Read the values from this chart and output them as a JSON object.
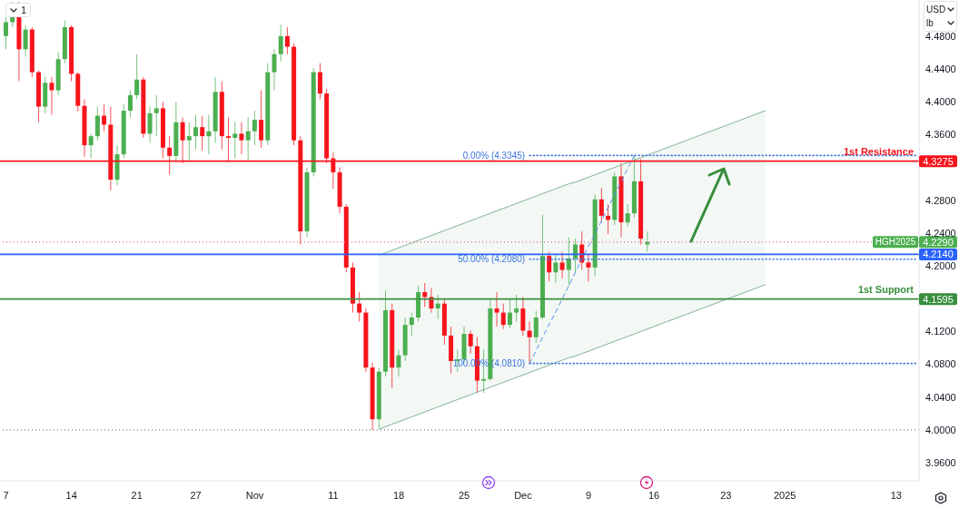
{
  "chart_data": {
    "type": "candlestick",
    "categories": [
      "7",
      null,
      null,
      null,
      null,
      null,
      null,
      null,
      null,
      null,
      "14",
      null,
      null,
      null,
      null,
      null,
      null,
      null,
      null,
      null,
      "21",
      null,
      null,
      null,
      null,
      null,
      null,
      null,
      null,
      "27",
      null,
      null,
      null,
      null,
      null,
      null,
      null,
      null,
      "Nov",
      null,
      null,
      null,
      null,
      null,
      null,
      null,
      null,
      null,
      null,
      null,
      "11",
      null,
      null,
      null,
      null,
      null,
      null,
      null,
      null,
      null,
      "18",
      null,
      null,
      null,
      null,
      null,
      null,
      null,
      null,
      null,
      "25",
      null,
      null,
      null,
      null,
      null,
      null,
      null,
      null,
      "Dec",
      null,
      null,
      null,
      null,
      null,
      null,
      null,
      null,
      null,
      "9",
      null,
      null,
      null,
      null,
      null,
      null,
      null,
      null,
      null,
      "16",
      null,
      null,
      null,
      null,
      null,
      null,
      null,
      null,
      null,
      null,
      "23",
      null,
      null,
      null,
      null,
      null,
      null,
      null,
      null,
      "2025",
      null,
      null,
      null,
      null,
      null,
      null,
      null,
      null,
      null,
      null,
      null,
      null,
      null,
      null,
      null,
      null,
      "13",
      null,
      null,
      null
    ],
    "ohlc": [
      [
        4.48,
        4.503,
        4.464,
        4.497
      ],
      [
        4.497,
        4.522,
        4.491,
        4.503
      ],
      [
        4.503,
        4.522,
        4.425,
        4.464
      ],
      [
        4.464,
        4.493,
        4.455,
        4.488
      ],
      [
        4.488,
        4.491,
        4.43,
        4.436
      ],
      [
        4.436,
        4.438,
        4.375,
        4.394
      ],
      [
        4.394,
        4.43,
        4.386,
        4.423
      ],
      [
        4.423,
        4.43,
        4.384,
        4.414
      ],
      [
        4.414,
        4.46,
        4.408,
        4.452
      ],
      [
        4.452,
        4.499,
        4.447,
        4.491
      ],
      [
        4.491,
        4.493,
        4.425,
        4.434
      ],
      [
        4.434,
        4.436,
        4.388,
        4.395
      ],
      [
        4.395,
        4.403,
        4.333,
        4.347
      ],
      [
        4.347,
        4.361,
        4.331,
        4.358
      ],
      [
        4.358,
        4.394,
        4.353,
        4.383
      ],
      [
        4.383,
        4.397,
        4.364,
        4.372
      ],
      [
        4.372,
        4.394,
        4.292,
        4.305
      ],
      [
        4.305,
        4.347,
        4.298,
        4.336
      ],
      [
        4.336,
        4.397,
        4.331,
        4.389
      ],
      [
        4.389,
        4.414,
        4.381,
        4.408
      ],
      [
        4.408,
        4.458,
        4.403,
        4.427
      ],
      [
        4.427,
        4.43,
        4.356,
        4.361
      ],
      [
        4.361,
        4.394,
        4.35,
        4.386
      ],
      [
        4.386,
        4.408,
        4.358,
        4.392
      ],
      [
        4.392,
        4.4,
        4.331,
        4.344
      ],
      [
        4.344,
        4.358,
        4.311,
        4.334
      ],
      [
        4.334,
        4.4,
        4.327,
        4.375
      ],
      [
        4.375,
        4.381,
        4.325,
        4.353
      ],
      [
        4.353,
        4.375,
        4.327,
        4.358
      ],
      [
        4.358,
        4.384,
        4.342,
        4.369
      ],
      [
        4.369,
        4.383,
        4.34,
        4.358
      ],
      [
        4.358,
        4.384,
        4.336,
        4.364
      ],
      [
        4.364,
        4.43,
        4.35,
        4.412
      ],
      [
        4.412,
        4.425,
        4.342,
        4.358
      ],
      [
        4.358,
        4.381,
        4.327,
        4.356
      ],
      [
        4.356,
        4.375,
        4.331,
        4.361
      ],
      [
        4.361,
        4.375,
        4.336,
        4.353
      ],
      [
        4.353,
        4.381,
        4.327,
        4.364
      ],
      [
        4.364,
        4.389,
        4.347,
        4.378
      ],
      [
        4.378,
        4.414,
        4.344,
        4.353
      ],
      [
        4.353,
        4.447,
        4.347,
        4.436
      ],
      [
        4.436,
        4.464,
        4.414,
        4.458
      ],
      [
        4.458,
        4.494,
        4.449,
        4.48
      ],
      [
        4.48,
        4.491,
        4.458,
        4.467
      ],
      [
        4.467,
        4.471,
        4.347,
        4.353
      ],
      [
        4.353,
        4.358,
        4.226,
        4.242
      ],
      [
        4.242,
        4.32,
        4.235,
        4.314
      ],
      [
        4.314,
        4.441,
        4.309,
        4.436
      ],
      [
        4.436,
        4.447,
        4.403,
        4.41
      ],
      [
        4.41,
        4.416,
        4.325,
        4.331
      ],
      [
        4.331,
        4.338,
        4.294,
        4.314
      ],
      [
        4.314,
        4.32,
        4.264,
        4.272
      ],
      [
        4.272,
        4.275,
        4.192,
        4.198
      ],
      [
        4.198,
        4.204,
        4.143,
        4.154
      ],
      [
        4.154,
        4.168,
        4.132,
        4.143
      ],
      [
        4.143,
        4.148,
        4.071,
        4.076
      ],
      [
        4.076,
        4.082,
        4.0,
        4.013
      ],
      [
        4.013,
        4.076,
        4.002,
        4.071
      ],
      [
        4.071,
        4.17,
        4.065,
        4.146
      ],
      [
        4.146,
        4.154,
        4.051,
        4.076
      ],
      [
        4.076,
        4.098,
        4.065,
        4.091
      ],
      [
        4.091,
        4.137,
        4.084,
        4.128
      ],
      [
        4.128,
        4.143,
        4.115,
        4.137
      ],
      [
        4.137,
        4.176,
        4.132,
        4.168
      ],
      [
        4.168,
        4.179,
        4.15,
        4.162
      ],
      [
        4.162,
        4.173,
        4.143,
        4.148
      ],
      [
        4.148,
        4.165,
        4.135,
        4.154
      ],
      [
        4.154,
        4.159,
        4.104,
        4.115
      ],
      [
        4.115,
        4.126,
        4.069,
        4.084
      ],
      [
        4.084,
        4.098,
        4.071,
        4.086
      ],
      [
        4.086,
        4.126,
        4.082,
        4.117
      ],
      [
        4.117,
        4.121,
        4.093,
        4.102
      ],
      [
        4.102,
        4.113,
        4.045,
        4.06
      ],
      [
        4.06,
        4.098,
        4.045,
        4.062
      ],
      [
        4.062,
        4.159,
        4.06,
        4.148
      ],
      [
        4.148,
        4.168,
        4.126,
        4.143
      ],
      [
        4.143,
        4.154,
        4.123,
        4.128
      ],
      [
        4.128,
        4.159,
        4.124,
        4.143
      ],
      [
        4.143,
        4.165,
        4.132,
        4.148
      ],
      [
        4.148,
        4.162,
        4.115,
        4.121
      ],
      [
        4.121,
        4.132,
        4.081,
        4.113
      ],
      [
        4.113,
        4.145,
        4.106,
        4.137
      ],
      [
        4.137,
        4.262,
        4.135,
        4.212
      ],
      [
        4.212,
        4.217,
        4.181,
        4.192
      ],
      [
        4.192,
        4.215,
        4.179,
        4.204
      ],
      [
        4.204,
        4.217,
        4.185,
        4.195
      ],
      [
        4.195,
        4.235,
        4.176,
        4.209
      ],
      [
        4.209,
        4.233,
        4.192,
        4.226
      ],
      [
        4.226,
        4.242,
        4.195,
        4.204
      ],
      [
        4.204,
        4.215,
        4.181,
        4.198
      ],
      [
        4.198,
        4.287,
        4.187,
        4.281
      ],
      [
        4.281,
        4.295,
        4.253,
        4.261
      ],
      [
        4.261,
        4.275,
        4.239,
        4.256
      ],
      [
        4.256,
        4.314,
        4.25,
        4.309
      ],
      [
        4.309,
        4.325,
        4.235,
        4.253
      ],
      [
        4.253,
        4.275,
        4.248,
        4.264
      ],
      [
        4.264,
        4.3345,
        4.259,
        4.303
      ],
      [
        4.303,
        4.33,
        4.226,
        4.233
      ],
      [
        4.226,
        4.242,
        4.217,
        4.229
      ],
      null,
      null,
      null,
      null,
      null,
      null,
      null,
      null,
      null,
      null,
      null,
      null,
      null,
      null,
      null,
      null,
      null,
      null,
      null,
      null,
      null,
      null,
      null,
      null,
      null,
      null,
      null,
      null,
      null,
      null,
      null,
      null,
      null,
      null,
      null,
      null,
      null,
      null,
      null,
      null,
      null
    ],
    "colors": [
      "#4caf50",
      "#4caf50",
      "#f7141c",
      "#4caf50",
      "#f7141c",
      "#f7141c",
      "#4caf50",
      "#f7141c",
      "#4caf50",
      "#4caf50",
      "#f7141c",
      "#f7141c",
      "#f7141c",
      "#4caf50",
      "#4caf50",
      "#f7141c",
      "#f7141c",
      "#4caf50",
      "#4caf50",
      "#4caf50",
      "#4caf50",
      "#f7141c",
      "#4caf50",
      "#4caf50",
      "#f7141c",
      "#f7141c",
      "#4caf50",
      "#f7141c",
      "#4caf50",
      "#4caf50",
      "#f7141c",
      "#4caf50",
      "#4caf50",
      "#f7141c",
      "#f7141c",
      "#4caf50",
      "#f7141c",
      "#4caf50",
      "#4caf50",
      "#f7141c",
      "#4caf50",
      "#4caf50",
      "#4caf50",
      "#f7141c",
      "#f7141c",
      "#f7141c",
      "#4caf50",
      "#4caf50",
      "#f7141c",
      "#f7141c",
      "#f7141c",
      "#f7141c",
      "#f7141c",
      "#f7141c",
      "#f7141c",
      "#f7141c",
      "#f7141c",
      "#4caf50",
      "#4caf50",
      "#f7141c",
      "#4caf50",
      "#4caf50",
      "#4caf50",
      "#4caf50",
      "#f7141c",
      "#f7141c",
      "#4caf50",
      "#f7141c",
      "#f7141c",
      "#4caf50",
      "#4caf50",
      "#f7141c",
      "#f7141c",
      "#4caf50",
      "#4caf50",
      "#f7141c",
      "#f7141c",
      "#4caf50",
      "#4caf50",
      "#f7141c",
      "#f7141c",
      "#4caf50",
      "#4caf50",
      "#f7141c",
      "#4caf50",
      "#f7141c",
      "#4caf50",
      "#4caf50",
      "#f7141c",
      "#f7141c",
      "#4caf50",
      "#f7141c",
      "#f7141c",
      "#4caf50",
      "#f7141c",
      "#4caf50",
      "#4caf50",
      "#f7141c",
      "#4caf50",
      null,
      null,
      null,
      null,
      null,
      null,
      null,
      null,
      null,
      null,
      null,
      null,
      null,
      null,
      null,
      null,
      null,
      null,
      null,
      null,
      null,
      null,
      null,
      null,
      null,
      null,
      null,
      null,
      null,
      null,
      null,
      null,
      null,
      null,
      null,
      null,
      null,
      null,
      null,
      null,
      null
    ],
    "series": [
      {
        "type": "line",
        "color": "#7fb394",
        "values": [
          null,
          null,
          null,
          null,
          null,
          null,
          null,
          null,
          null,
          null,
          null,
          null,
          null,
          null,
          null,
          null,
          null,
          null,
          null,
          null,
          null,
          null,
          null,
          null,
          null,
          null,
          null,
          null,
          null,
          null,
          null,
          null,
          null,
          null,
          null,
          null,
          null,
          null,
          null,
          null,
          null,
          null,
          null,
          null,
          null,
          null,
          null,
          null,
          null,
          null,
          null,
          null,
          null,
          null,
          null,
          null,
          null,
          4.001,
          4.004,
          4.007,
          4.01,
          4.013,
          4.016,
          4.019,
          4.022,
          4.025,
          4.028,
          4.031,
          4.034,
          4.037,
          4.04,
          4.043,
          4.046,
          4.049,
          4.052,
          4.055,
          4.058,
          4.061,
          4.064,
          4.067,
          4.07,
          4.073,
          4.076,
          4.079,
          4.082,
          4.085,
          4.088,
          4.09,
          4.093,
          4.096,
          4.099,
          4.102,
          4.105,
          4.108,
          4.111,
          4.114,
          4.117,
          4.12,
          4.123,
          4.126,
          4.129,
          4.132,
          4.135,
          4.138,
          4.141,
          4.144,
          4.147,
          4.15,
          4.153,
          4.156,
          4.159,
          4.162,
          4.165,
          4.168,
          4.171,
          4.174,
          4.177,
          null,
          null,
          null,
          null,
          null,
          null,
          null,
          null,
          null,
          null,
          null,
          null,
          null,
          null,
          null,
          null,
          null,
          null,
          null,
          null,
          null,
          null,
          null
        ],
        "lower": [
          null,
          null,
          null,
          null,
          null,
          null,
          null,
          null,
          null,
          null,
          null,
          null,
          null,
          null,
          null,
          null,
          null,
          null,
          null,
          null,
          null,
          null,
          null,
          null,
          null,
          null,
          null,
          null,
          null,
          null,
          null,
          null,
          null,
          null,
          null,
          null,
          null,
          null,
          null,
          null,
          null,
          null,
          null,
          null,
          null,
          null,
          null,
          null,
          null,
          null,
          null,
          null,
          null,
          null,
          null,
          null,
          null,
          4.001,
          4.004,
          4.007,
          4.01,
          4.013,
          4.016,
          4.019,
          4.022,
          4.025,
          4.028,
          4.031,
          4.034,
          4.037,
          4.04,
          4.043,
          4.046,
          4.049,
          4.052,
          4.055,
          4.058,
          4.061,
          4.064,
          4.067,
          4.07,
          4.073,
          4.076,
          4.079,
          4.082,
          4.085,
          4.088,
          4.09,
          4.093,
          4.096,
          4.099,
          4.102,
          4.105,
          4.108,
          4.111,
          4.114,
          4.117,
          4.12,
          4.123,
          4.126,
          4.129,
          4.132,
          4.135,
          4.138,
          4.141,
          4.144,
          4.147,
          4.15,
          4.153,
          4.156,
          4.159,
          4.162,
          4.165,
          4.168,
          4.171,
          4.174,
          4.177,
          null,
          null,
          null,
          null,
          null,
          null,
          null,
          null,
          null,
          null,
          null,
          null,
          null,
          null,
          null,
          null,
          null,
          null,
          null,
          null,
          null,
          null,
          null
        ],
        "upper": [
          null,
          null,
          null,
          null,
          null,
          null,
          null,
          null,
          null,
          null,
          null,
          null,
          null,
          null,
          null,
          null,
          null,
          null,
          null,
          null,
          null,
          null,
          null,
          null,
          null,
          null,
          null,
          null,
          null,
          null,
          null,
          null,
          null,
          null,
          null,
          null,
          null,
          null,
          null,
          null,
          null,
          null,
          null,
          null,
          null,
          null,
          null,
          null,
          null,
          null,
          null,
          null,
          null,
          null,
          null,
          null,
          null,
          4.213,
          4.216,
          4.219,
          4.222,
          4.225,
          4.228,
          4.231,
          4.234,
          4.237,
          4.24,
          4.243,
          4.246,
          4.249,
          4.252,
          4.255,
          4.258,
          4.261,
          4.264,
          4.267,
          4.27,
          4.273,
          4.276,
          4.279,
          4.282,
          4.285,
          4.288,
          4.291,
          4.294,
          4.297,
          4.3,
          4.302,
          4.305,
          4.308,
          4.311,
          4.314,
          4.317,
          4.32,
          4.323,
          4.326,
          4.329,
          4.332,
          4.335,
          4.338,
          4.341,
          4.344,
          4.347,
          4.35,
          4.353,
          4.356,
          4.359,
          4.362,
          4.365,
          4.368,
          4.371,
          4.374,
          4.377,
          4.38,
          4.383,
          4.386,
          4.389,
          null,
          null,
          null,
          null,
          null,
          null,
          null,
          null,
          null,
          null,
          null,
          null,
          null,
          null,
          null,
          null,
          null,
          null,
          null,
          null,
          null,
          null,
          null
        ]
      },
      {
        "type": "line",
        "color": "#7fb394",
        "values": [
          null,
          null,
          null,
          null,
          null,
          null,
          null,
          null,
          null,
          null,
          null,
          null,
          null,
          null,
          null,
          null,
          null,
          null,
          null,
          null,
          null,
          null,
          null,
          null,
          null,
          null,
          null,
          null,
          null,
          null,
          null,
          null,
          null,
          null,
          null,
          null,
          null,
          null,
          null,
          null,
          null,
          null,
          null,
          null,
          null,
          null,
          null,
          null,
          null,
          null,
          null,
          null,
          null,
          null,
          null,
          null,
          null,
          4.213,
          4.216,
          4.219,
          4.222,
          4.225,
          4.228,
          4.231,
          4.234,
          4.237,
          4.24,
          4.243,
          4.246,
          4.249,
          4.252,
          4.255,
          4.258,
          4.261,
          4.264,
          4.267,
          4.27,
          4.273,
          4.276,
          4.279,
          4.282,
          4.285,
          4.288,
          4.291,
          4.294,
          4.297,
          4.3,
          4.302,
          4.305,
          4.308,
          4.311,
          4.314,
          4.317,
          4.32,
          4.323,
          4.326,
          4.329,
          4.332,
          4.335,
          4.338,
          4.341,
          4.344,
          4.347,
          4.35,
          4.353,
          4.356,
          4.359,
          4.362,
          4.365,
          4.368,
          4.371,
          4.374,
          4.377,
          4.38,
          4.383,
          4.386,
          4.389,
          null,
          null,
          null,
          null,
          null,
          null,
          null,
          null,
          null,
          null,
          null,
          null,
          null,
          null,
          null,
          null,
          null,
          null,
          null,
          null,
          null,
          null,
          null
        ]
      },
      {
        "type": "line",
        "color": "#5b8def",
        "line_style": "dashed",
        "values": [
          null,
          null,
          null,
          null,
          null,
          null,
          null,
          null,
          null,
          null,
          null,
          null,
          null,
          null,
          null,
          null,
          null,
          null,
          null,
          null,
          null,
          null,
          null,
          null,
          null,
          null,
          null,
          null,
          null,
          null,
          null,
          null,
          null,
          null,
          null,
          null,
          null,
          null,
          null,
          null,
          null,
          null,
          null,
          null,
          null,
          null,
          null,
          null,
          null,
          null,
          null,
          null,
          null,
          null,
          null,
          null,
          null,
          null,
          null,
          null,
          null,
          null,
          null,
          null,
          null,
          null,
          null,
          null,
          null,
          null,
          null,
          null,
          null,
          null,
          null,
          null,
          null,
          null,
          null,
          null,
          4.081,
          4.097,
          4.113,
          4.129,
          4.144,
          4.16,
          4.176,
          4.192,
          4.208,
          4.224,
          4.239,
          4.255,
          4.271,
          4.287,
          4.303,
          4.319,
          4.3345,
          null,
          null,
          null,
          null,
          null,
          null,
          null,
          null,
          null,
          null,
          null,
          null,
          null,
          null,
          null,
          null,
          null,
          null,
          null,
          null,
          null,
          null,
          null,
          null,
          null,
          null,
          null,
          null,
          null,
          null,
          null,
          null,
          null,
          null,
          null,
          null,
          null,
          null,
          null,
          null,
          null,
          null,
          null
        ]
      },
      {
        "type": "line",
        "name": "0.00% (4.3345)",
        "color": "#3a75e0",
        "line_style": "dotted",
        "values": [
          null,
          null,
          null,
          null,
          null,
          null,
          null,
          null,
          null,
          null,
          null,
          null,
          null,
          null,
          null,
          null,
          null,
          null,
          null,
          null,
          null,
          null,
          null,
          null,
          null,
          null,
          null,
          null,
          null,
          null,
          null,
          null,
          null,
          null,
          null,
          null,
          null,
          null,
          null,
          null,
          null,
          null,
          null,
          null,
          null,
          null,
          null,
          null,
          null,
          null,
          null,
          null,
          null,
          null,
          null,
          null,
          null,
          null,
          null,
          null,
          null,
          null,
          null,
          null,
          null,
          null,
          null,
          null,
          null,
          null,
          null,
          null,
          null,
          null,
          null,
          null,
          null,
          null,
          null,
          null,
          4.3345,
          4.3345,
          4.3345,
          4.3345,
          4.3345,
          4.3345,
          4.3345,
          4.3345,
          4.3345,
          4.3345,
          4.3345,
          4.3345,
          4.3345,
          4.3345,
          4.3345,
          4.3345,
          4.3345,
          4.3345,
          4.3345,
          4.3345,
          4.3345,
          4.3345,
          4.3345,
          4.3345,
          4.3345,
          4.3345,
          4.3345,
          4.3345,
          4.3345,
          4.3345,
          4.3345,
          4.3345,
          4.3345,
          4.3345,
          4.3345,
          4.3345,
          4.3345,
          4.3345,
          4.3345,
          4.3345,
          4.3345,
          4.3345,
          4.3345,
          4.3345,
          4.3345,
          4.3345,
          4.3345,
          4.3345,
          4.3345,
          4.3345,
          4.3345,
          4.3345,
          4.3345,
          4.3345,
          4.3345,
          4.3345,
          4.3345,
          4.3345,
          4.3345,
          4.3345
        ]
      },
      {
        "type": "line",
        "name": "50.00% (4.2080)",
        "color": "#3a75e0",
        "line_style": "dotted",
        "values": [
          null,
          null,
          null,
          null,
          null,
          null,
          null,
          null,
          null,
          null,
          null,
          null,
          null,
          null,
          null,
          null,
          null,
          null,
          null,
          null,
          null,
          null,
          null,
          null,
          null,
          null,
          null,
          null,
          null,
          null,
          null,
          null,
          null,
          null,
          null,
          null,
          null,
          null,
          null,
          null,
          null,
          null,
          null,
          null,
          null,
          null,
          null,
          null,
          null,
          null,
          null,
          null,
          null,
          null,
          null,
          null,
          null,
          null,
          null,
          null,
          null,
          null,
          null,
          null,
          null,
          null,
          null,
          null,
          null,
          null,
          null,
          null,
          null,
          null,
          null,
          null,
          null,
          null,
          null,
          null,
          4.208,
          4.208,
          4.208,
          4.208,
          4.208,
          4.208,
          4.208,
          4.208,
          4.208,
          4.208,
          4.208,
          4.208,
          4.208,
          4.208,
          4.208,
          4.208,
          4.208,
          4.208,
          4.208,
          4.208,
          4.208,
          4.208,
          4.208,
          4.208,
          4.208,
          4.208,
          4.208,
          4.208,
          4.208,
          4.208,
          4.208,
          4.208,
          4.208,
          4.208,
          4.208,
          4.208,
          4.208,
          4.208,
          4.208,
          4.208,
          4.208,
          4.208,
          4.208,
          4.208,
          4.208,
          4.208,
          4.208,
          4.208,
          4.208,
          4.208,
          4.208,
          4.208,
          4.208,
          4.208,
          4.208,
          4.208,
          4.208,
          4.208,
          4.208,
          4.208
        ]
      },
      {
        "type": "line",
        "name": "100.00% (4.0810)",
        "color": "#3a75e0",
        "line_style": "dotted",
        "values": [
          null,
          null,
          null,
          null,
          null,
          null,
          null,
          null,
          null,
          null,
          null,
          null,
          null,
          null,
          null,
          null,
          null,
          null,
          null,
          null,
          null,
          null,
          null,
          null,
          null,
          null,
          null,
          null,
          null,
          null,
          null,
          null,
          null,
          null,
          null,
          null,
          null,
          null,
          null,
          null,
          null,
          null,
          null,
          null,
          null,
          null,
          null,
          null,
          null,
          null,
          null,
          null,
          null,
          null,
          null,
          null,
          null,
          null,
          null,
          null,
          null,
          null,
          null,
          null,
          null,
          null,
          null,
          null,
          null,
          null,
          null,
          null,
          null,
          null,
          null,
          null,
          null,
          null,
          null,
          null,
          4.081,
          4.081,
          4.081,
          4.081,
          4.081,
          4.081,
          4.081,
          4.081,
          4.081,
          4.081,
          4.081,
          4.081,
          4.081,
          4.081,
          4.081,
          4.081,
          4.081,
          4.081,
          4.081,
          4.081,
          4.081,
          4.081,
          4.081,
          4.081,
          4.081,
          4.081,
          4.081,
          4.081,
          4.081,
          4.081,
          4.081,
          4.081,
          4.081,
          4.081,
          4.081,
          4.081,
          4.081,
          4.081,
          4.081,
          4.081,
          4.081,
          4.081,
          4.081,
          4.081,
          4.081,
          4.081,
          4.081,
          4.081,
          4.081,
          4.081,
          4.081,
          4.081,
          4.081,
          4.081,
          4.081,
          4.081,
          4.081,
          4.081,
          4.081,
          4.081
        ]
      }
    ],
    "ref_lines": [
      {
        "axis": "y",
        "value": 4.3275,
        "label": "1st Resistance",
        "color": "#f7141c"
      },
      {
        "axis": "y",
        "value": 4.229,
        "label": "HGH2025",
        "color": "#ec5f7e",
        "line_style": "dotted"
      },
      {
        "axis": "y",
        "value": 4.214,
        "color": "#2962ff"
      },
      {
        "axis": "y",
        "value": 4.1595,
        "label": "1st Support",
        "color": "#388e3c"
      },
      {
        "axis": "y",
        "value": 4.0,
        "color": "#787b86",
        "line_style": "dotted"
      }
    ],
    "ylim": [
      3.938,
      4.524
    ],
    "yticks": [
      {
        "value": 3.96,
        "label": "3.9600"
      },
      {
        "value": 4.0,
        "label": "4.0000"
      },
      {
        "value": 4.04,
        "label": "4.0400"
      },
      {
        "value": 4.08,
        "label": "4.0800"
      },
      {
        "value": 4.12,
        "label": "4.1200"
      },
      {
        "value": 4.1595,
        "label": "4.1595"
      },
      {
        "value": 4.2,
        "label": "4.2000"
      },
      {
        "value": 4.214,
        "label": "4.2140"
      },
      {
        "value": 4.229,
        "label": "4.2290"
      },
      {
        "value": 4.24,
        "label": "4.2400"
      },
      {
        "value": 4.28,
        "label": "4.2800"
      },
      {
        "value": 4.3275,
        "label": "4.3275"
      },
      {
        "value": 4.36,
        "label": "4.3600"
      },
      {
        "value": 4.4,
        "label": "4.4000"
      },
      {
        "value": 4.44,
        "label": "4.4400"
      },
      {
        "value": 4.48,
        "label": "4.4800"
      }
    ],
    "annotations": [
      "1",
      "USD",
      "lb"
    ]
  }
}
